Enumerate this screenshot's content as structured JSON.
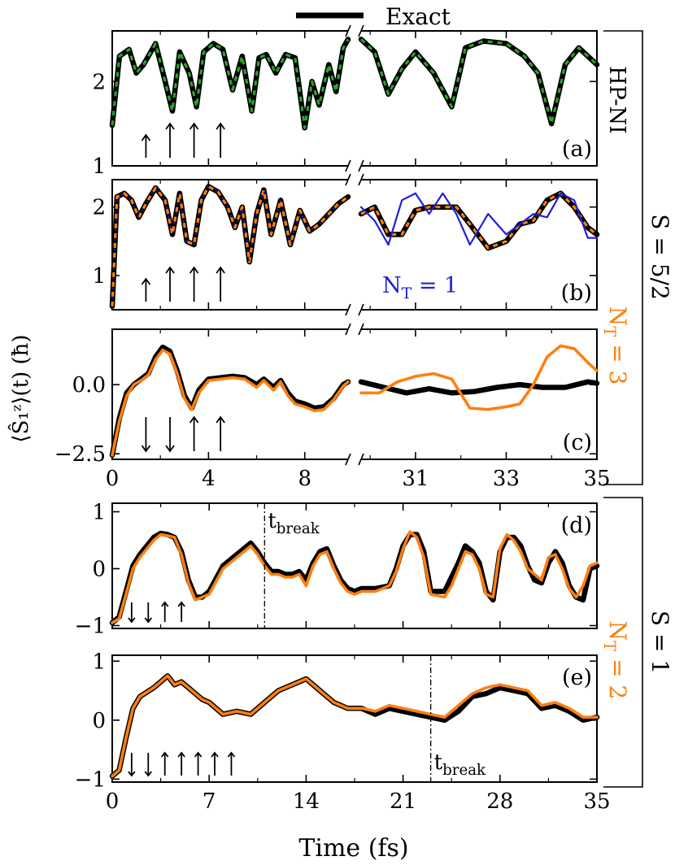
{
  "legend": {
    "exact": "Exact"
  },
  "labels": {
    "ylabel": "⟨Ŝ₁ᶻ⟩(t) (ħ)",
    "xlabel": "Time (fs)",
    "hp_ni": "HP-NI",
    "nt3": "N_T = 3",
    "nt2": "N_T = 2",
    "nt1": "N_T = 1",
    "s52": "S = 5/2",
    "s1": "S = 1",
    "tbreak": "t_break"
  },
  "colors": {
    "exact": "#000000",
    "hp_ni": "#2ca02c",
    "nt": "#ff7f0e",
    "nt1": "#1f1fd6"
  },
  "chart_data": [
    {
      "panel": "(a)",
      "type": "line",
      "broken_x_axis": true,
      "x_left_range": [
        0,
        9.8
      ],
      "x_right_range": [
        29.8,
        35
      ],
      "ylim": [
        1,
        2.6
      ],
      "yticks": [
        1,
        2
      ],
      "arrows": [
        {
          "t": 1.4,
          "dir": "up"
        },
        {
          "t": 2.4,
          "dir": "up"
        },
        {
          "t": 3.4,
          "dir": "up"
        },
        {
          "t": 4.5,
          "dir": "up"
        }
      ],
      "series": [
        {
          "name": "Exact",
          "x": [
            0,
            0.3,
            0.7,
            1.0,
            1.3,
            1.8,
            2.2,
            2.5,
            2.8,
            3.2,
            3.5,
            3.8,
            4.2,
            4.6,
            5.0,
            5.4,
            5.8,
            6.1,
            6.4,
            6.8,
            7.2,
            7.6,
            8.0,
            8.3,
            8.6,
            9.0,
            9.3,
            9.6,
            9.8
          ],
          "y": [
            1.48,
            2.3,
            2.38,
            2.1,
            2.2,
            2.45,
            2.0,
            1.65,
            2.35,
            2.1,
            1.7,
            2.35,
            2.45,
            2.38,
            1.9,
            2.3,
            1.65,
            2.28,
            2.32,
            2.1,
            2.32,
            2.28,
            1.45,
            2.0,
            1.72,
            2.2,
            1.88,
            2.4,
            2.5
          ]
        },
        {
          "name": "Exact",
          "x": [
            29.8,
            30.1,
            30.4,
            30.7,
            31.0,
            31.4,
            31.8,
            32.1,
            32.5,
            33.0,
            33.4,
            33.7,
            34.0,
            34.3,
            34.6,
            35.0
          ],
          "y": [
            2.5,
            2.35,
            1.85,
            2.15,
            2.35,
            2.1,
            1.7,
            2.4,
            2.48,
            2.45,
            2.3,
            2.1,
            1.5,
            2.2,
            2.4,
            2.2
          ]
        }
      ]
    },
    {
      "panel": "(b)",
      "type": "line",
      "broken_x_axis": true,
      "x_left_range": [
        0,
        9.8
      ],
      "x_right_range": [
        29.8,
        35
      ],
      "ylim": [
        0.5,
        2.4
      ],
      "yticks": [
        1,
        2
      ],
      "arrows": [
        {
          "t": 1.4,
          "dir": "up"
        },
        {
          "t": 2.4,
          "dir": "up"
        },
        {
          "t": 3.4,
          "dir": "up"
        },
        {
          "t": 4.5,
          "dir": "up"
        }
      ],
      "series": [
        {
          "name": "Exact",
          "x": [
            0,
            0.2,
            0.5,
            0.8,
            1.1,
            1.4,
            1.8,
            2.2,
            2.5,
            2.8,
            3.1,
            3.4,
            3.7,
            4.0,
            4.4,
            4.8,
            5.1,
            5.4,
            5.7,
            6.0,
            6.3,
            6.6,
            7.0,
            7.4,
            7.8,
            8.2,
            8.6,
            9.0,
            9.4,
            9.8
          ],
          "y": [
            0.55,
            2.15,
            2.2,
            2.1,
            1.85,
            2.05,
            2.28,
            2.1,
            1.6,
            2.2,
            1.5,
            1.45,
            2.1,
            2.3,
            2.22,
            2.0,
            1.7,
            2.0,
            1.2,
            1.9,
            2.25,
            1.6,
            2.1,
            1.45,
            1.95,
            1.65,
            1.75,
            1.9,
            2.05,
            2.15
          ]
        },
        {
          "name": "Exact",
          "x": [
            29.8,
            30.1,
            30.4,
            30.7,
            31.0,
            31.3,
            31.6,
            31.9,
            32.2,
            32.6,
            33.0,
            33.3,
            33.6,
            33.9,
            34.2,
            34.5,
            34.8,
            35.0
          ],
          "y": [
            1.9,
            2.0,
            1.6,
            1.6,
            1.95,
            2.0,
            2.0,
            2.0,
            1.75,
            1.4,
            1.5,
            1.75,
            1.8,
            2.1,
            2.2,
            2.0,
            1.7,
            1.6
          ]
        },
        {
          "name": "N_T = 1",
          "x": [
            29.8,
            30.1,
            30.4,
            30.7,
            31.0,
            31.3,
            31.6,
            31.9,
            32.2,
            32.6,
            33.0,
            33.3,
            33.6,
            33.9,
            34.2,
            34.5,
            34.8,
            35.0
          ],
          "y": [
            2.0,
            1.8,
            1.45,
            2.1,
            2.2,
            1.9,
            2.2,
            1.9,
            1.45,
            1.9,
            1.6,
            1.75,
            1.9,
            1.85,
            2.2,
            2.1,
            1.55,
            1.55
          ]
        }
      ]
    },
    {
      "panel": "(c)",
      "type": "line",
      "broken_x_axis": true,
      "x_left_range": [
        0,
        9.8
      ],
      "x_right_range": [
        29.8,
        35
      ],
      "ylim": [
        -2.7,
        2.0
      ],
      "yticks": [
        -2.5,
        0.0
      ],
      "arrows": [
        {
          "t": 1.4,
          "dir": "down"
        },
        {
          "t": 2.4,
          "dir": "down"
        },
        {
          "t": 3.4,
          "dir": "up"
        },
        {
          "t": 4.5,
          "dir": "up"
        }
      ],
      "series": [
        {
          "name": "Exact",
          "x": [
            0,
            0.3,
            0.6,
            0.9,
            1.2,
            1.5,
            1.8,
            2.1,
            2.4,
            2.7,
            3.0,
            3.3,
            3.6,
            4.0,
            4.5,
            5.0,
            5.5,
            6.0,
            6.3,
            6.7,
            7.0,
            7.3,
            7.6,
            8.0,
            8.4,
            8.8,
            9.2,
            9.6,
            9.8
          ],
          "y": [
            -2.55,
            -1.2,
            -0.3,
            0.0,
            0.2,
            0.4,
            1.0,
            1.35,
            1.2,
            0.5,
            -0.4,
            -0.85,
            -0.2,
            0.2,
            0.25,
            0.3,
            0.25,
            0.0,
            0.2,
            -0.1,
            0.15,
            -0.3,
            -0.6,
            -0.7,
            -0.85,
            -0.8,
            -0.5,
            0.0,
            0.1
          ]
        },
        {
          "name": "Exact",
          "x": [
            29.8,
            30.3,
            30.8,
            31.3,
            31.8,
            32.3,
            32.8,
            33.3,
            33.8,
            34.3,
            34.8,
            35.0
          ],
          "y": [
            0.1,
            -0.1,
            -0.3,
            -0.15,
            -0.3,
            -0.25,
            -0.1,
            0.0,
            -0.1,
            -0.1,
            0.1,
            0.05
          ]
        },
        {
          "name": "N_T = 3",
          "x": [
            0,
            0.3,
            0.6,
            0.9,
            1.2,
            1.5,
            1.8,
            2.1,
            2.4,
            2.7,
            3.0,
            3.3,
            3.6,
            4.0,
            4.5,
            5.0,
            5.5,
            6.0,
            6.3,
            6.7,
            7.0,
            7.3,
            7.6,
            8.0,
            8.4,
            8.8,
            9.2,
            9.6,
            9.8
          ],
          "y": [
            -2.55,
            -1.3,
            -0.4,
            0.0,
            0.15,
            0.35,
            0.9,
            1.25,
            1.1,
            0.4,
            -0.5,
            -0.9,
            -0.3,
            0.15,
            0.2,
            0.25,
            0.2,
            -0.1,
            0.15,
            -0.2,
            0.1,
            -0.4,
            -0.7,
            -0.8,
            -0.95,
            -0.9,
            -0.55,
            -0.05,
            0.1
          ]
        },
        {
          "name": "N_T = 3",
          "x": [
            29.8,
            30.2,
            30.6,
            31.0,
            31.4,
            31.8,
            32.2,
            32.6,
            33.0,
            33.3,
            33.6,
            33.9,
            34.2,
            34.5,
            34.8,
            35.0
          ],
          "y": [
            -0.3,
            -0.3,
            0.1,
            0.3,
            0.4,
            0.2,
            -0.85,
            -0.9,
            -0.8,
            -0.7,
            0.0,
            1.0,
            1.4,
            1.3,
            0.8,
            0.5
          ]
        }
      ]
    },
    {
      "panel": "(d)",
      "type": "line",
      "xlim": [
        0,
        35
      ],
      "ylim": [
        -1.05,
        1.15
      ],
      "yticks": [
        -1,
        0,
        1
      ],
      "xticks": [
        0,
        7,
        14,
        21,
        28,
        35
      ],
      "t_break": 11,
      "arrows": [
        {
          "t": 1.4,
          "dir": "down"
        },
        {
          "t": 2.6,
          "dir": "down"
        },
        {
          "t": 3.8,
          "dir": "up"
        },
        {
          "t": 5.0,
          "dir": "up"
        }
      ],
      "series": [
        {
          "name": "Exact",
          "x": [
            0,
            0.5,
            1.0,
            1.5,
            2.0,
            2.5,
            3.0,
            3.5,
            4.0,
            4.5,
            5.0,
            5.5,
            6.0,
            6.5,
            7.0,
            8.0,
            9.0,
            10.0,
            10.5,
            11.0,
            11.5,
            12.0,
            12.5,
            13.0,
            13.5,
            14.0,
            14.5,
            15.0,
            15.5,
            16.0,
            16.5,
            17.0,
            17.5,
            18.0,
            19.0,
            20.0,
            20.5,
            21.0,
            21.5,
            22.0,
            22.5,
            23.0,
            24.0,
            24.5,
            25.0,
            25.5,
            26.0,
            26.5,
            27.0,
            27.5,
            28.0,
            28.5,
            29.0,
            29.5,
            30.0,
            30.5,
            31.0,
            31.5,
            32.0,
            32.5,
            33.0,
            33.5,
            34.0,
            34.5,
            35.0
          ],
          "y": [
            -0.95,
            -0.85,
            -0.4,
            0.05,
            0.25,
            0.4,
            0.55,
            0.62,
            0.6,
            0.55,
            0.3,
            -0.2,
            -0.5,
            -0.5,
            -0.4,
            0.05,
            0.25,
            0.45,
            0.3,
            0.1,
            -0.05,
            -0.05,
            -0.1,
            -0.1,
            -0.05,
            -0.2,
            0.1,
            0.3,
            0.35,
            0.05,
            -0.2,
            -0.35,
            -0.4,
            -0.35,
            -0.35,
            -0.3,
            0.0,
            0.4,
            0.6,
            0.6,
            0.3,
            -0.4,
            -0.4,
            -0.15,
            0.1,
            0.4,
            0.3,
            0.1,
            -0.4,
            -0.55,
            0.3,
            0.55,
            0.55,
            0.4,
            0.05,
            -0.2,
            -0.25,
            0.1,
            0.3,
            0.1,
            -0.3,
            -0.5,
            -0.55,
            0.0,
            0.05
          ]
        },
        {
          "name": "N_T = 2",
          "x": [
            0,
            0.5,
            1.0,
            1.5,
            2.0,
            2.5,
            3.0,
            3.5,
            4.0,
            4.5,
            5.0,
            5.5,
            6.0,
            6.5,
            7.0,
            8.0,
            9.0,
            10.0,
            10.5,
            11.0,
            11.5,
            12.0,
            12.5,
            13.0,
            13.5,
            14.0,
            14.5,
            15.0,
            15.5,
            16.0,
            16.5,
            17.0,
            17.5,
            18.0,
            19.0,
            20.0,
            20.5,
            21.0,
            21.5,
            22.0,
            22.5,
            23.0,
            24.0,
            24.5,
            25.0,
            25.5,
            26.0,
            26.5,
            27.0,
            27.5,
            28.0,
            28.5,
            29.0,
            29.5,
            30.0,
            30.5,
            31.0,
            31.5,
            32.0,
            32.5,
            33.0,
            33.5,
            34.0,
            34.5,
            35.0
          ],
          "y": [
            -0.95,
            -0.88,
            -0.45,
            0.0,
            0.2,
            0.35,
            0.5,
            0.6,
            0.58,
            0.55,
            0.25,
            -0.25,
            -0.55,
            -0.5,
            -0.45,
            0.0,
            0.2,
            0.4,
            0.25,
            0.05,
            -0.1,
            -0.1,
            -0.15,
            -0.15,
            -0.1,
            -0.3,
            0.05,
            0.25,
            0.3,
            0.0,
            -0.25,
            -0.4,
            -0.45,
            -0.4,
            -0.4,
            -0.3,
            -0.05,
            0.35,
            0.65,
            0.55,
            0.2,
            -0.45,
            -0.5,
            -0.3,
            0.0,
            0.3,
            0.25,
            0.0,
            -0.45,
            -0.5,
            0.35,
            0.6,
            0.5,
            0.3,
            0.0,
            -0.1,
            -0.2,
            0.2,
            0.25,
            0.0,
            -0.35,
            -0.5,
            -0.3,
            0.05,
            0.1
          ]
        }
      ]
    },
    {
      "panel": "(e)",
      "type": "line",
      "xlim": [
        0,
        35
      ],
      "ylim": [
        -1.05,
        1.1
      ],
      "yticks": [
        -1,
        0,
        1
      ],
      "xticks": [
        0,
        7,
        14,
        21,
        28,
        35
      ],
      "t_break": 23,
      "arrows": [
        {
          "t": 1.4,
          "dir": "down"
        },
        {
          "t": 2.6,
          "dir": "down"
        },
        {
          "t": 3.8,
          "dir": "up"
        },
        {
          "t": 5.0,
          "dir": "up"
        },
        {
          "t": 6.2,
          "dir": "up"
        },
        {
          "t": 7.4,
          "dir": "up"
        },
        {
          "t": 8.6,
          "dir": "up"
        }
      ],
      "series": [
        {
          "name": "Exact",
          "x": [
            0,
            0.5,
            1.0,
            1.5,
            2.0,
            3.0,
            4.0,
            4.5,
            5.0,
            5.5,
            6.0,
            6.5,
            7.0,
            8.0,
            9.0,
            10.0,
            11.0,
            12.0,
            13.0,
            14.0,
            15.0,
            16.0,
            17.0,
            18.0,
            19.0,
            20.0,
            21.0,
            22.0,
            23.0,
            24.0,
            25.0,
            26.0,
            27.0,
            28.0,
            29.0,
            30.0,
            31.0,
            32.0,
            33.0,
            34.0,
            35.0
          ],
          "y": [
            -0.95,
            -0.85,
            -0.3,
            0.2,
            0.4,
            0.55,
            0.75,
            0.6,
            0.65,
            0.55,
            0.45,
            0.35,
            0.3,
            0.1,
            0.15,
            0.1,
            0.3,
            0.5,
            0.6,
            0.7,
            0.5,
            0.3,
            0.2,
            0.2,
            0.1,
            0.2,
            0.15,
            0.1,
            0.05,
            0.0,
            0.15,
            0.4,
            0.45,
            0.55,
            0.5,
            0.45,
            0.2,
            0.25,
            0.15,
            0.0,
            0.05
          ]
        },
        {
          "name": "N_T = 2",
          "x": [
            0,
            0.5,
            1.0,
            1.5,
            2.0,
            3.0,
            4.0,
            4.5,
            5.0,
            5.5,
            6.0,
            6.5,
            7.0,
            8.0,
            9.0,
            10.0,
            11.0,
            12.0,
            13.0,
            14.0,
            15.0,
            16.0,
            17.0,
            18.0,
            19.0,
            20.0,
            21.0,
            22.0,
            23.0,
            24.0,
            25.0,
            26.0,
            27.0,
            28.0,
            29.0,
            30.0,
            31.0,
            32.0,
            33.0,
            34.0,
            35.0
          ],
          "y": [
            -0.95,
            -0.85,
            -0.3,
            0.2,
            0.4,
            0.55,
            0.75,
            0.6,
            0.65,
            0.55,
            0.45,
            0.35,
            0.3,
            0.1,
            0.15,
            0.1,
            0.3,
            0.5,
            0.6,
            0.7,
            0.5,
            0.3,
            0.2,
            0.2,
            0.15,
            0.25,
            0.2,
            0.15,
            0.1,
            0.05,
            0.25,
            0.45,
            0.55,
            0.6,
            0.55,
            0.5,
            0.25,
            0.3,
            0.2,
            0.05,
            0.05
          ]
        }
      ]
    }
  ]
}
